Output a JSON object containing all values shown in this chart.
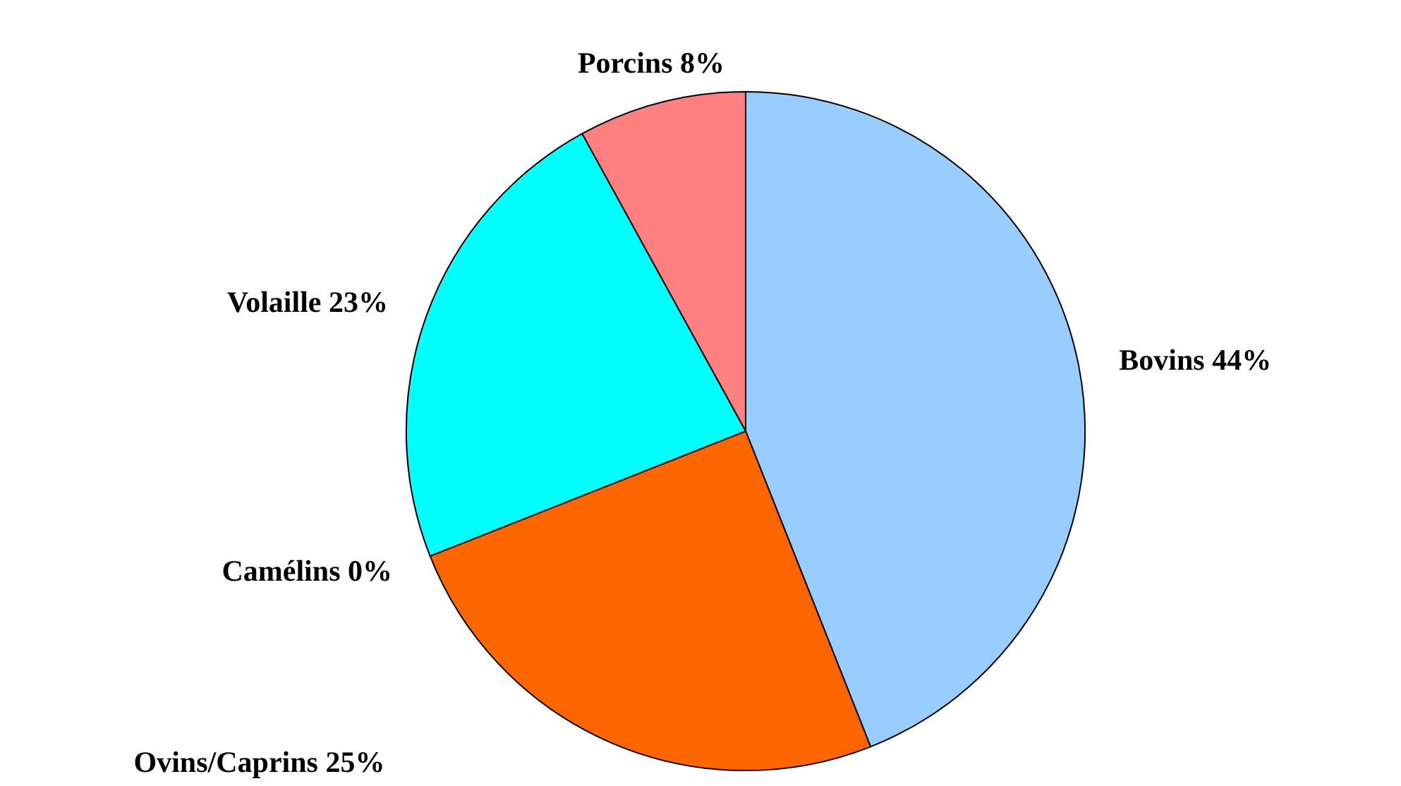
{
  "chart_data": {
    "type": "pie",
    "categories": [
      "Bovins",
      "Ovins/Caprins",
      "Camélins",
      "Volaille",
      "Porcins"
    ],
    "values": [
      44,
      25,
      0,
      23,
      8
    ],
    "value_labels": [
      "44%",
      "25%",
      "0%",
      "23%",
      "8%"
    ],
    "colors": [
      "#99ccff",
      "#ff6600",
      "#993366",
      "#00ffff",
      "#ff8080"
    ]
  }
}
